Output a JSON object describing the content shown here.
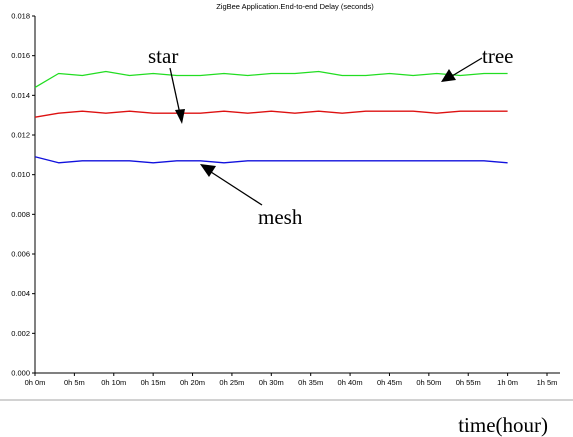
{
  "chart_data": {
    "type": "line",
    "title": "ZigBee Application.End-to-end Delay (seconds)",
    "xlabel": "time(hour)",
    "ylabel": "",
    "x_ticks": [
      "0h 0m",
      "0h 5m",
      "0h 10m",
      "0h 15m",
      "0h 20m",
      "0h 25m",
      "0h 30m",
      "0h 35m",
      "0h 40m",
      "0h 45m",
      "0h 50m",
      "0h 55m",
      "1h 0m",
      "1h 5m"
    ],
    "x_tick_minutes": [
      0,
      5,
      10,
      15,
      20,
      25,
      30,
      35,
      40,
      45,
      50,
      55,
      60,
      65
    ],
    "xlim_minutes": [
      0,
      65
    ],
    "y_ticks": [
      "0.000",
      "0.002",
      "0.004",
      "0.006",
      "0.008",
      "0.010",
      "0.012",
      "0.014",
      "0.016",
      "0.018"
    ],
    "ylim": [
      0,
      0.018
    ],
    "grid": false,
    "series": [
      {
        "name": "tree",
        "color": "#22dd22",
        "x_minutes": [
          0,
          3,
          6,
          9,
          12,
          15,
          18,
          21,
          24,
          27,
          30,
          33,
          36,
          39,
          42,
          45,
          48,
          51,
          54,
          57,
          60
        ],
        "values": [
          0.0144,
          0.0151,
          0.015,
          0.0152,
          0.015,
          0.0151,
          0.015,
          0.015,
          0.0151,
          0.015,
          0.0151,
          0.0151,
          0.0152,
          0.015,
          0.015,
          0.0151,
          0.015,
          0.0151,
          0.015,
          0.0151,
          0.0151
        ]
      },
      {
        "name": "star",
        "color": "#dd1111",
        "x_minutes": [
          0,
          3,
          6,
          9,
          12,
          15,
          18,
          21,
          24,
          27,
          30,
          33,
          36,
          39,
          42,
          45,
          48,
          51,
          54,
          57,
          60
        ],
        "values": [
          0.0129,
          0.0131,
          0.0132,
          0.0131,
          0.0132,
          0.0131,
          0.0131,
          0.0131,
          0.0132,
          0.0131,
          0.0132,
          0.0131,
          0.0132,
          0.0131,
          0.0132,
          0.0132,
          0.0132,
          0.0131,
          0.0132,
          0.0132,
          0.0132
        ]
      },
      {
        "name": "mesh",
        "color": "#1111dd",
        "x_minutes": [
          0,
          3,
          6,
          9,
          12,
          15,
          18,
          21,
          24,
          27,
          30,
          33,
          36,
          39,
          42,
          45,
          48,
          51,
          54,
          57,
          60
        ],
        "values": [
          0.0109,
          0.0106,
          0.0107,
          0.0107,
          0.0107,
          0.0106,
          0.0107,
          0.0107,
          0.0106,
          0.0107,
          0.0107,
          0.0107,
          0.0107,
          0.0107,
          0.0107,
          0.0107,
          0.0107,
          0.0107,
          0.0107,
          0.0107,
          0.0106
        ]
      }
    ],
    "annotations": [
      {
        "text": "star",
        "series": "star"
      },
      {
        "text": "tree",
        "series": "tree"
      },
      {
        "text": "mesh",
        "series": "mesh"
      }
    ]
  }
}
